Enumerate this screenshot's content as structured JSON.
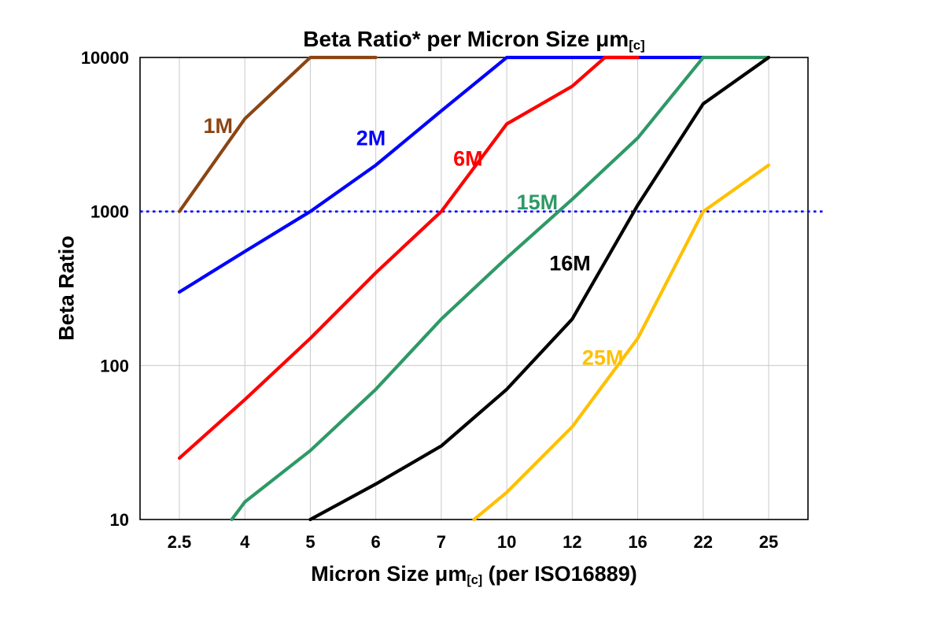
{
  "title": {
    "part1": "Beta Ratio* per Micron Size ",
    "mu": "μm",
    "sub": "[c]"
  },
  "axes": {
    "y_label": "Beta Ratio",
    "x_label": {
      "part1": "Micron Size ",
      "mu": "μm",
      "sub": "[c]",
      "part2": " (per ISO16889)"
    },
    "y_ticks": [
      "10000",
      "1000",
      "100",
      "10"
    ],
    "x_ticks": [
      "2.5",
      "4",
      "5",
      "6",
      "7",
      "10",
      "12",
      "16",
      "22",
      "25"
    ]
  },
  "chart_data": {
    "type": "line",
    "title": "Beta Ratio* per Micron Size μm[c]",
    "xlabel": "Micron Size μm[c] (per ISO16889)",
    "ylabel": "Beta Ratio",
    "y_scale": "log",
    "ylim": [
      10,
      10000
    ],
    "grid": true,
    "categories": [
      2.5,
      4,
      5,
      6,
      7,
      10,
      12,
      16,
      22,
      25
    ],
    "reference_line": {
      "y": 1000,
      "color": "#0000FF",
      "style": "dotted"
    },
    "series": [
      {
        "name": "1M",
        "color": "#8B4513",
        "points": [
          [
            2.5,
            1000
          ],
          [
            4,
            4000
          ],
          [
            5,
            10000
          ],
          [
            6,
            10000
          ]
        ],
        "label_pos": [
          3.05,
          3600
        ]
      },
      {
        "name": "2M",
        "color": "#0000FF",
        "points": [
          [
            2.5,
            300
          ],
          [
            4,
            550
          ],
          [
            5,
            1000
          ],
          [
            6,
            2000
          ],
          [
            7,
            4500
          ],
          [
            10,
            10000
          ],
          [
            22,
            10000
          ]
        ],
        "label_pos": [
          5.7,
          3000
        ]
      },
      {
        "name": "6M",
        "color": "#FF0000",
        "points": [
          [
            2.5,
            25
          ],
          [
            4,
            60
          ],
          [
            5,
            150
          ],
          [
            6,
            400
          ],
          [
            7,
            1000
          ],
          [
            10,
            3700
          ],
          [
            12,
            6500
          ],
          [
            14,
            10000
          ],
          [
            16,
            10000
          ]
        ],
        "label_pos": [
          7.55,
          2200
        ]
      },
      {
        "name": "15M",
        "color": "#2E9966",
        "points": [
          [
            3.7,
            10
          ],
          [
            4,
            13
          ],
          [
            5,
            28
          ],
          [
            6,
            70
          ],
          [
            7,
            200
          ],
          [
            10,
            500
          ],
          [
            12,
            1200
          ],
          [
            16,
            3000
          ],
          [
            22,
            10000
          ],
          [
            25,
            10000
          ]
        ],
        "label_pos": [
          10.3,
          1150
        ]
      },
      {
        "name": "16M",
        "color": "#000000",
        "points": [
          [
            5,
            10
          ],
          [
            6,
            17
          ],
          [
            7,
            30
          ],
          [
            10,
            70
          ],
          [
            12,
            200
          ],
          [
            16,
            1100
          ],
          [
            22,
            5000
          ],
          [
            25,
            10000
          ]
        ],
        "label_pos": [
          11.3,
          460
        ]
      },
      {
        "name": "25M",
        "color": "#FFC000",
        "points": [
          [
            8.5,
            10
          ],
          [
            10,
            15
          ],
          [
            12,
            40
          ],
          [
            16,
            150
          ],
          [
            22,
            1000
          ],
          [
            25,
            2000
          ]
        ],
        "label_pos": [
          12.6,
          112
        ]
      }
    ]
  }
}
